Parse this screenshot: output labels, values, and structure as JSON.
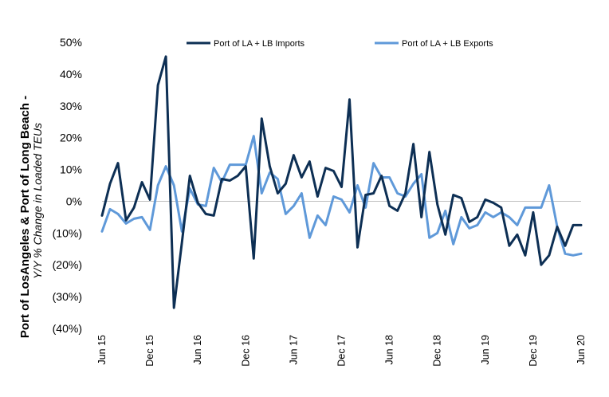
{
  "chart_data": {
    "type": "line",
    "ylabel": "Port of LosAngeles & Port of Long Beach -",
    "ylabel_sub": "Y/Y % Change in Loaded TEUs",
    "xlabel": "",
    "ylim": [
      -40,
      50
    ],
    "yticks": [
      50,
      40,
      30,
      20,
      10,
      0,
      -10,
      -20,
      -30,
      -40
    ],
    "ytick_labels": [
      "50%",
      "40%",
      "30%",
      "20%",
      "10%",
      "0%",
      "(10%)",
      "(20%)",
      "(30%)",
      "(40%)"
    ],
    "x": [
      "Jun 15",
      "Jul 15",
      "Aug 15",
      "Sep 15",
      "Oct 15",
      "Nov 15",
      "Dec 15",
      "Jan 16",
      "Feb 16",
      "Mar 16",
      "Apr 16",
      "May 16",
      "Jun 16",
      "Jul 16",
      "Aug 16",
      "Sep 16",
      "Oct 16",
      "Nov 16",
      "Dec 16",
      "Jan 17",
      "Feb 17",
      "Mar 17",
      "Apr 17",
      "May 17",
      "Jun 17",
      "Jul 17",
      "Aug 17",
      "Sep 17",
      "Oct 17",
      "Nov 17",
      "Dec 17",
      "Jan 18",
      "Feb 18",
      "Mar 18",
      "Apr 18",
      "May 18",
      "Jun 18",
      "Jul 18",
      "Aug 18",
      "Sep 18",
      "Oct 18",
      "Nov 18",
      "Dec 18",
      "Jan 19",
      "Feb 19",
      "Mar 19",
      "Apr 19",
      "May 19",
      "Jun 19",
      "Jul 19",
      "Aug 19",
      "Sep 19",
      "Oct 19",
      "Nov 19",
      "Dec 19",
      "Jan 20",
      "Feb 20",
      "Mar 20",
      "Apr 20",
      "May 20",
      "Jun 20"
    ],
    "xtick_labels": [
      "Jun 15",
      "Dec 15",
      "Jun 16",
      "Dec 16",
      "Jun 17",
      "Dec 17",
      "Jun 18",
      "Dec 18",
      "Jun 19",
      "Dec 19",
      "Jun 20"
    ],
    "xtick_indices": [
      0,
      6,
      12,
      18,
      24,
      30,
      36,
      42,
      48,
      54,
      60
    ],
    "grid": false,
    "legend_position": "top-center",
    "series": [
      {
        "name": "Port of LA + LB Imports",
        "color": "#0d2f54",
        "values": [
          -4.5,
          5.5,
          12,
          -6,
          -2,
          6,
          0.5,
          36.5,
          45.5,
          -33.5,
          -13,
          8,
          -0.5,
          -4,
          -4.5,
          7,
          6.5,
          8,
          11,
          -18,
          26,
          11,
          2.5,
          5.5,
          14.5,
          7.5,
          12.5,
          1.5,
          10.5,
          9.5,
          4.5,
          32,
          -14.5,
          2,
          2.5,
          8,
          -1.5,
          -3,
          2.5,
          18,
          -5,
          15.5,
          -1,
          -10.5,
          2,
          1,
          -6.5,
          -5,
          0.5,
          -0.5,
          -2,
          -14,
          -10.5,
          -17,
          -3.5,
          -20,
          -17,
          -8,
          -14,
          -7.5,
          -7.5
        ]
      },
      {
        "name": "Port of LA + LB Exports",
        "color": "#5f99d9",
        "values": [
          -9.5,
          -2.5,
          -4,
          -7,
          -5.5,
          -5,
          -9,
          5,
          11,
          5,
          -9.5,
          4,
          -1,
          -1.5,
          10.5,
          6,
          11.5,
          11.5,
          11.5,
          20.5,
          2.5,
          9,
          7,
          -4,
          -1.5,
          2.5,
          -11.5,
          -4.5,
          -7.5,
          1.5,
          0.5,
          -3.5,
          5,
          -2,
          12,
          7.5,
          7.5,
          2.5,
          1.5,
          5.5,
          8.5,
          -11.5,
          -10,
          -3,
          -13.5,
          -5,
          -8.5,
          -7.5,
          -3.5,
          -5,
          -3.5,
          -5,
          -7.5,
          -2,
          -2,
          -2,
          5,
          -8,
          -16.5,
          -17,
          -16.5
        ]
      }
    ]
  }
}
